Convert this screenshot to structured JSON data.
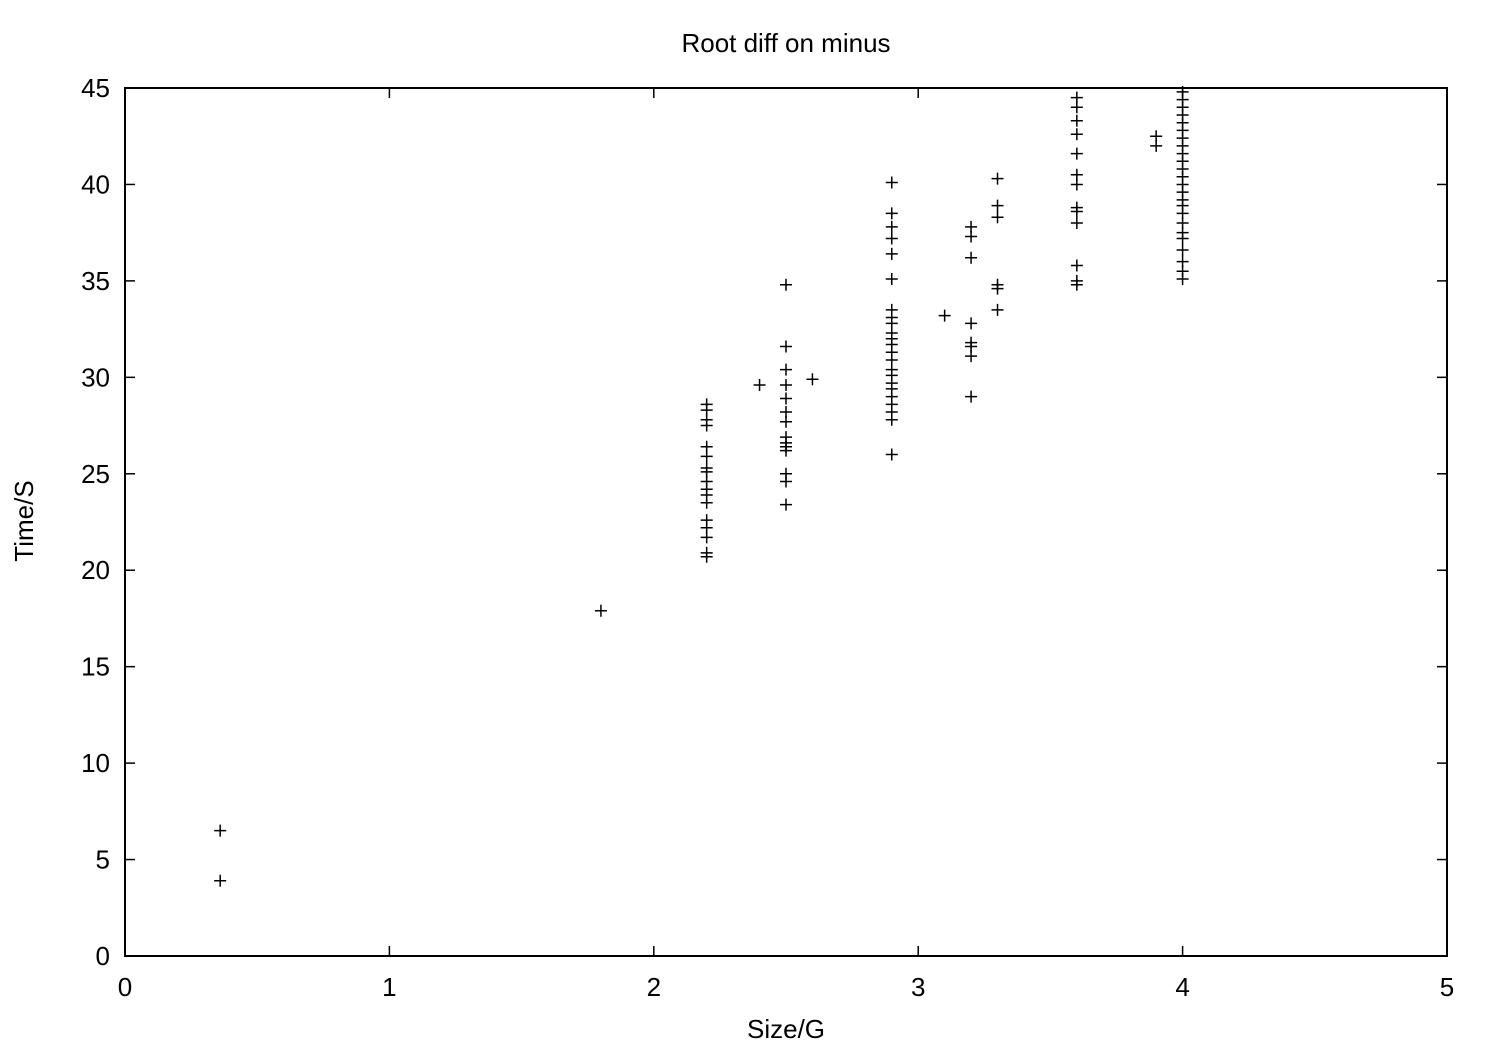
{
  "chart_data": {
    "type": "scatter",
    "title": "Root diff on minus",
    "xlabel": "Size/G",
    "ylabel": "Time/S",
    "xlim": [
      0,
      5
    ],
    "ylim": [
      0,
      45
    ],
    "x_ticks": [
      "0",
      "1",
      "2",
      "3",
      "4",
      "5"
    ],
    "y_ticks": [
      "0",
      "5",
      "10",
      "15",
      "20",
      "25",
      "30",
      "35",
      "40",
      "45"
    ],
    "grid": false,
    "legend": "none",
    "marker": "plus",
    "color": "#000000",
    "points": [
      [
        0.36,
        6.5
      ],
      [
        0.36,
        3.9
      ],
      [
        1.8,
        17.9
      ],
      [
        2.2,
        28.6
      ],
      [
        2.2,
        28.3
      ],
      [
        2.2,
        27.8
      ],
      [
        2.2,
        27.5
      ],
      [
        2.2,
        26.4
      ],
      [
        2.2,
        25.9
      ],
      [
        2.2,
        25.3
      ],
      [
        2.2,
        25.1
      ],
      [
        2.2,
        24.6
      ],
      [
        2.2,
        24.2
      ],
      [
        2.2,
        23.9
      ],
      [
        2.2,
        23.5
      ],
      [
        2.2,
        22.6
      ],
      [
        2.2,
        22.2
      ],
      [
        2.2,
        21.7
      ],
      [
        2.2,
        20.9
      ],
      [
        2.2,
        20.7
      ],
      [
        2.4,
        29.6
      ],
      [
        2.5,
        34.8
      ],
      [
        2.5,
        31.6
      ],
      [
        2.5,
        30.4
      ],
      [
        2.5,
        29.6
      ],
      [
        2.5,
        28.9
      ],
      [
        2.5,
        28.2
      ],
      [
        2.5,
        27.7
      ],
      [
        2.5,
        26.9
      ],
      [
        2.5,
        26.6
      ],
      [
        2.5,
        26.4
      ],
      [
        2.5,
        26.2
      ],
      [
        2.5,
        25.0
      ],
      [
        2.5,
        24.6
      ],
      [
        2.5,
        23.4
      ],
      [
        2.6,
        29.9
      ],
      [
        2.9,
        40.1
      ],
      [
        2.9,
        38.5
      ],
      [
        2.9,
        37.8
      ],
      [
        2.9,
        37.2
      ],
      [
        2.9,
        36.4
      ],
      [
        2.9,
        35.1
      ],
      [
        2.9,
        33.5
      ],
      [
        2.9,
        33.1
      ],
      [
        2.9,
        32.8
      ],
      [
        2.9,
        32.3
      ],
      [
        2.9,
        32.0
      ],
      [
        2.9,
        31.7
      ],
      [
        2.9,
        31.3
      ],
      [
        2.9,
        30.9
      ],
      [
        2.9,
        30.4
      ],
      [
        2.9,
        30.1
      ],
      [
        2.9,
        29.7
      ],
      [
        2.9,
        29.4
      ],
      [
        2.9,
        29.0
      ],
      [
        2.9,
        28.6
      ],
      [
        2.9,
        28.2
      ],
      [
        2.9,
        27.8
      ],
      [
        2.9,
        26.0
      ],
      [
        3.1,
        33.2
      ],
      [
        3.2,
        37.8
      ],
      [
        3.2,
        37.3
      ],
      [
        3.2,
        36.2
      ],
      [
        3.2,
        32.8
      ],
      [
        3.2,
        31.8
      ],
      [
        3.2,
        31.6
      ],
      [
        3.2,
        31.1
      ],
      [
        3.2,
        29.0
      ],
      [
        3.3,
        40.3
      ],
      [
        3.3,
        38.9
      ],
      [
        3.3,
        38.3
      ],
      [
        3.3,
        34.8
      ],
      [
        3.3,
        34.6
      ],
      [
        3.3,
        33.5
      ],
      [
        3.6,
        44.5
      ],
      [
        3.6,
        44.0
      ],
      [
        3.6,
        43.3
      ],
      [
        3.6,
        42.6
      ],
      [
        3.6,
        41.6
      ],
      [
        3.6,
        40.5
      ],
      [
        3.6,
        40.0
      ],
      [
        3.6,
        38.8
      ],
      [
        3.6,
        38.6
      ],
      [
        3.6,
        38.0
      ],
      [
        3.6,
        35.8
      ],
      [
        3.6,
        35.0
      ],
      [
        3.6,
        34.8
      ],
      [
        3.9,
        42.5
      ],
      [
        3.9,
        42.0
      ],
      [
        4.0,
        44.8
      ],
      [
        4.0,
        44.4
      ],
      [
        4.0,
        44.0
      ],
      [
        4.0,
        43.6
      ],
      [
        4.0,
        43.2
      ],
      [
        4.0,
        42.8
      ],
      [
        4.0,
        42.4
      ],
      [
        4.0,
        42.0
      ],
      [
        4.0,
        41.6
      ],
      [
        4.0,
        41.2
      ],
      [
        4.0,
        40.8
      ],
      [
        4.0,
        40.4
      ],
      [
        4.0,
        40.0
      ],
      [
        4.0,
        39.6
      ],
      [
        4.0,
        39.2
      ],
      [
        4.0,
        38.9
      ],
      [
        4.0,
        38.5
      ],
      [
        4.0,
        38.0
      ],
      [
        4.0,
        37.5
      ],
      [
        4.0,
        37.2
      ],
      [
        4.0,
        36.6
      ],
      [
        4.0,
        36.0
      ],
      [
        4.0,
        35.5
      ],
      [
        4.0,
        35.1
      ]
    ]
  }
}
